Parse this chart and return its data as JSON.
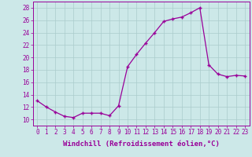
{
  "x_values": [
    0,
    1,
    2,
    3,
    4,
    5,
    6,
    7,
    8,
    9,
    10,
    11,
    12,
    13,
    14,
    15,
    16,
    17,
    18,
    19,
    20,
    21,
    22,
    23
  ],
  "y_values": [
    13,
    12,
    11.2,
    10.5,
    10.3,
    11,
    11,
    11,
    10.6,
    12.2,
    18.5,
    20.5,
    22.3,
    24.0,
    25.8,
    26.2,
    26.5,
    27.2,
    28.0,
    18.8,
    17.3,
    16.9,
    17.1,
    17.0
  ],
  "xlim": [
    -0.5,
    23.5
  ],
  "ylim": [
    9.0,
    29.0
  ],
  "yticks": [
    10,
    12,
    14,
    16,
    18,
    20,
    22,
    24,
    26,
    28
  ],
  "xticks": [
    0,
    1,
    2,
    3,
    4,
    5,
    6,
    7,
    8,
    9,
    10,
    11,
    12,
    13,
    14,
    15,
    16,
    17,
    18,
    19,
    20,
    21,
    22,
    23
  ],
  "xlabel": "Windchill (Refroidissement éolien,°C)",
  "line_color": "#990099",
  "marker": "+",
  "bg_color": "#cce8e8",
  "grid_color": "#aacccc",
  "axis_label_fontsize": 6.5,
  "tick_fontsize": 5.5
}
